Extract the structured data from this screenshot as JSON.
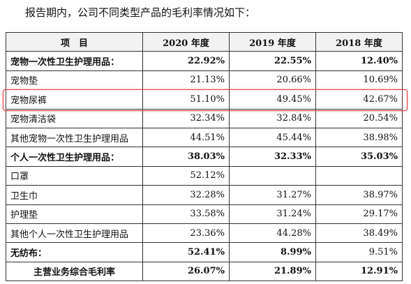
{
  "intro_text": "报告期内，公司不同类型产品的毛利率情况如下：",
  "table": {
    "headers": [
      "项　目",
      "2020 年度",
      "2019 年度",
      "2018 年度"
    ],
    "rows": [
      {
        "label": "宠物一次性卫生护理用品：",
        "v2020": "22.92%",
        "v2019": "22.55%",
        "v2018": "12.40%",
        "bold": true
      },
      {
        "label": "宠物垫",
        "v2020": "21.13%",
        "v2019": "20.66%",
        "v2018": "10.69%",
        "bold": false
      },
      {
        "label": "宠物尿裤",
        "v2020": "51.10%",
        "v2019": "49.45%",
        "v2018": "42.67%",
        "bold": false
      },
      {
        "label": "宠物清洁袋",
        "v2020": "32.34%",
        "v2019": "32.84%",
        "v2018": "20.54%",
        "bold": false
      },
      {
        "label": "其他宠物一次性卫生护理用品",
        "v2020": "44.51%",
        "v2019": "45.44%",
        "v2018": "38.98%",
        "bold": false
      },
      {
        "label": "个人一次性卫生护理用品：",
        "v2020": "38.03%",
        "v2019": "32.33%",
        "v2018": "35.03%",
        "bold": true
      },
      {
        "label": "口罩",
        "v2020": "52.12%",
        "v2019": "",
        "v2018": "",
        "bold": false
      },
      {
        "label": "卫生巾",
        "v2020": "32.28%",
        "v2019": "31.27%",
        "v2018": "38.97%",
        "bold": false
      },
      {
        "label": "护理垫",
        "v2020": "33.58%",
        "v2019": "31.24%",
        "v2018": "29.17%",
        "bold": false
      },
      {
        "label": "其他个人一次性卫生护理用品",
        "v2020": "23.36%",
        "v2019": "44.28%",
        "v2018": "38.49%",
        "bold": false
      },
      {
        "label": "无纺布：",
        "v2020": "52.41%",
        "v2019": "8.99%",
        "v2018": "9.51%",
        "bold": true,
        "bold_cols": [
          "v2020",
          "v2019"
        ]
      },
      {
        "label": "主营业务综合毛利率",
        "v2020": "26.07%",
        "v2019": "21.89%",
        "v2018": "12.91%",
        "bold": true,
        "centered": true
      }
    ]
  },
  "highlight_color": "#e23a3a"
}
